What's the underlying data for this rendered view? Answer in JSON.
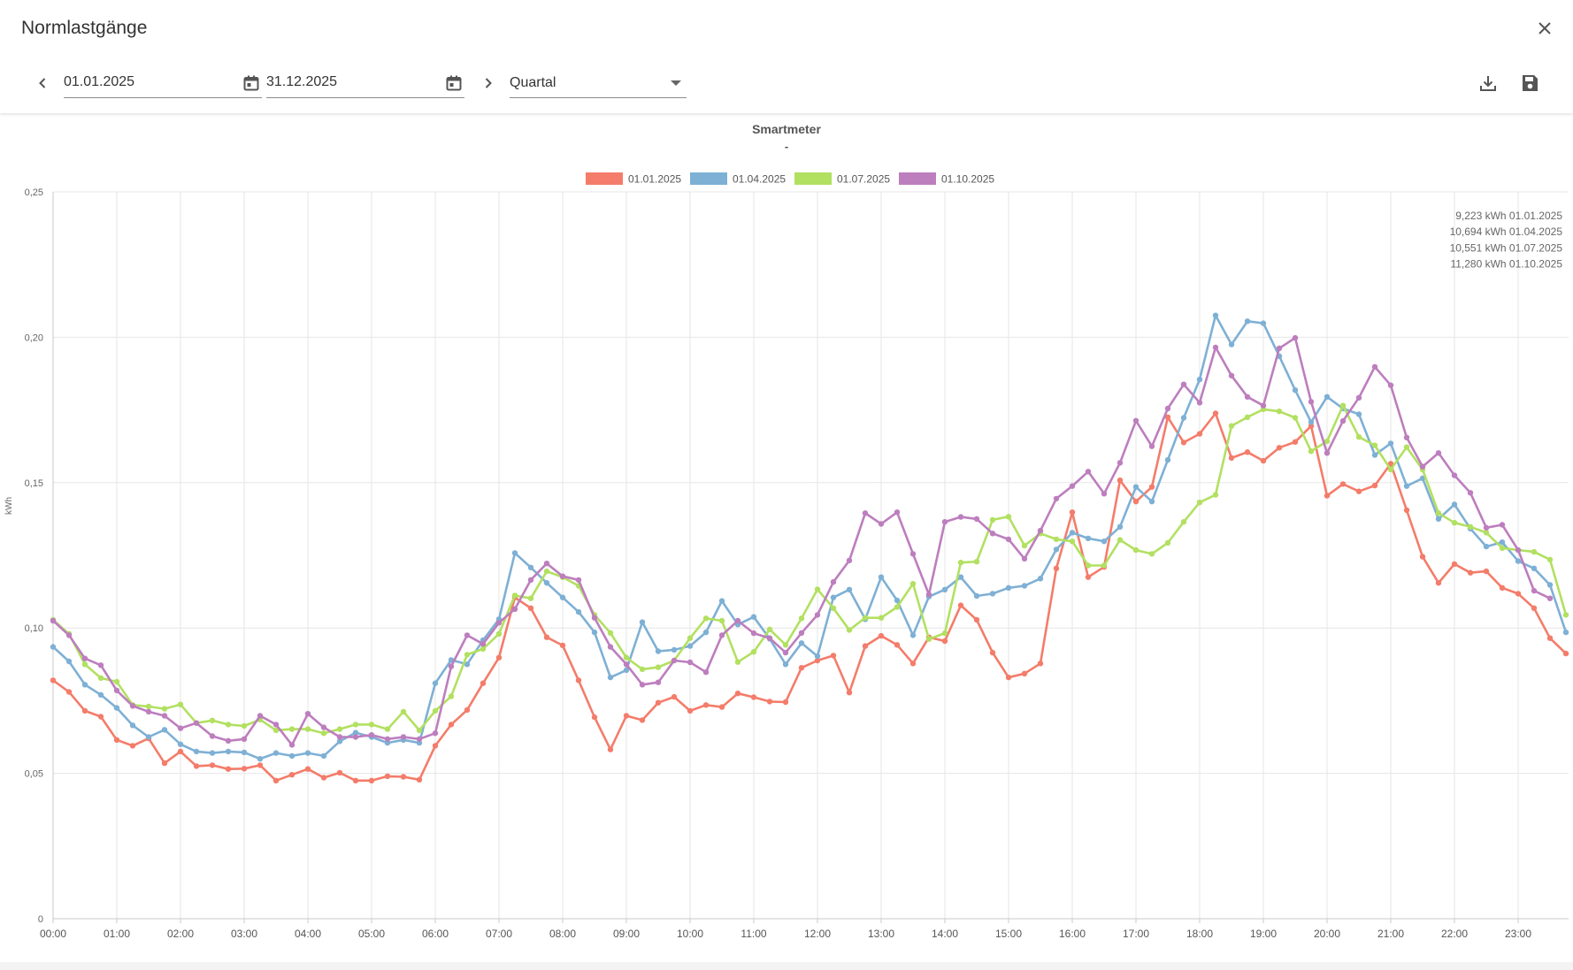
{
  "dialog": {
    "title": "Normlastgänge"
  },
  "toolbar": {
    "date_from": "01.01.2025",
    "date_to": "31.12.2025",
    "interval": "Quartal"
  },
  "icons": {
    "close": "close-icon",
    "prev": "chevron-left-icon",
    "next": "chevron-right-icon",
    "calendar": "calendar-icon",
    "download": "download-icon",
    "save": "save-icon"
  },
  "chart_data": {
    "type": "line",
    "title": "Smartmeter",
    "subtitle": "-",
    "ylabel": "kWh",
    "xlabel": "",
    "ylim": [
      0,
      0.25
    ],
    "y_ticks": [
      "0",
      "0,05",
      "0,10",
      "0,15",
      "0,20",
      "0,25"
    ],
    "x_ticks": [
      "00:00",
      "01:00",
      "02:00",
      "03:00",
      "04:00",
      "05:00",
      "06:00",
      "07:00",
      "08:00",
      "09:00",
      "10:00",
      "11:00",
      "12:00",
      "13:00",
      "14:00",
      "15:00",
      "16:00",
      "17:00",
      "18:00",
      "19:00",
      "20:00",
      "21:00",
      "22:00",
      "23:00"
    ],
    "grid": true,
    "legend_position": "top",
    "totals": [
      "9,223 kWh 01.01.2025",
      "10,694 kWh 01.04.2025",
      "10,551 kWh 01.07.2025",
      "11,280 kWh 01.10.2025"
    ],
    "series": [
      {
        "name": "01.01.2025",
        "color": "#f47c6a",
        "values": [
          0.082,
          0.078,
          0.0715,
          0.0695,
          0.0615,
          0.0595,
          0.062,
          0.0535,
          0.0575,
          0.0525,
          0.0528,
          0.0515,
          0.0516,
          0.0528,
          0.0475,
          0.0495,
          0.0515,
          0.0485,
          0.0502,
          0.0475,
          0.0475,
          0.049,
          0.0488,
          0.0478,
          0.0595,
          0.0668,
          0.0718,
          0.081,
          0.0898,
          0.1105,
          0.1068,
          0.0968,
          0.094,
          0.082,
          0.0693,
          0.0582,
          0.0698,
          0.0683,
          0.0743,
          0.0763,
          0.0715,
          0.0735,
          0.0728,
          0.0775,
          0.0762,
          0.0747,
          0.0745,
          0.0863,
          0.0888,
          0.0905,
          0.0778,
          0.0938,
          0.0973,
          0.0942,
          0.0878,
          0.0968,
          0.0955,
          0.1078,
          0.1028,
          0.0915,
          0.083,
          0.0843,
          0.0878,
          0.1205,
          0.1398,
          0.1175,
          0.121,
          0.1508,
          0.1435,
          0.1485,
          0.1725,
          0.1638,
          0.1668,
          0.1738,
          0.1585,
          0.1605,
          0.1575,
          0.162,
          0.164,
          0.1695,
          0.1455,
          0.1495,
          0.147,
          0.149,
          0.1565,
          0.1405,
          0.1245,
          0.1155,
          0.122,
          0.119,
          0.1195,
          0.1138,
          0.1118,
          0.1068,
          0.0965,
          0.0912
        ]
      },
      {
        "name": "01.04.2025",
        "color": "#7eb0d5",
        "values": [
          0.0935,
          0.0885,
          0.0805,
          0.077,
          0.0725,
          0.0665,
          0.0625,
          0.065,
          0.06,
          0.0575,
          0.057,
          0.0575,
          0.0572,
          0.055,
          0.057,
          0.056,
          0.057,
          0.056,
          0.061,
          0.064,
          0.0625,
          0.0605,
          0.0615,
          0.0605,
          0.081,
          0.089,
          0.0875,
          0.0958,
          0.103,
          0.1258,
          0.1208,
          0.1155,
          0.1105,
          0.1055,
          0.0985,
          0.083,
          0.0855,
          0.102,
          0.092,
          0.0925,
          0.0938,
          0.0985,
          0.1093,
          0.1012,
          0.1038,
          0.0963,
          0.0875,
          0.0948,
          0.0903,
          0.1105,
          0.1132,
          0.103,
          0.1175,
          0.1095,
          0.0975,
          0.1108,
          0.1132,
          0.1175,
          0.111,
          0.1118,
          0.1138,
          0.1145,
          0.117,
          0.127,
          0.1328,
          0.1308,
          0.1298,
          0.1348,
          0.1485,
          0.1435,
          0.1578,
          0.1723,
          0.1855,
          0.2075,
          0.1975,
          0.2055,
          0.2048,
          0.1935,
          0.1818,
          0.1708,
          0.1795,
          0.1755,
          0.1735,
          0.1595,
          0.1635,
          0.1488,
          0.1515,
          0.1375,
          0.1425,
          0.1342,
          0.128,
          0.1295,
          0.123,
          0.1205,
          0.1148,
          0.0985
        ]
      },
      {
        "name": "01.07.2025",
        "color": "#b2e061",
        "values": [
          0.1028,
          0.098,
          0.0875,
          0.0828,
          0.0815,
          0.0735,
          0.073,
          0.0722,
          0.0737,
          0.0673,
          0.0682,
          0.0668,
          0.0663,
          0.0685,
          0.0648,
          0.0652,
          0.0652,
          0.0638,
          0.0652,
          0.0668,
          0.0668,
          0.0652,
          0.0712,
          0.0648,
          0.0715,
          0.0765,
          0.0908,
          0.0928,
          0.098,
          0.1112,
          0.1102,
          0.1195,
          0.1175,
          0.1145,
          0.1045,
          0.0983,
          0.0898,
          0.0858,
          0.0865,
          0.0888,
          0.0965,
          0.1033,
          0.1025,
          0.0883,
          0.0918,
          0.0995,
          0.0942,
          0.1033,
          0.1133,
          0.1068,
          0.0993,
          0.1035,
          0.1035,
          0.1072,
          0.1152,
          0.0962,
          0.0982,
          0.1225,
          0.1228,
          0.1372,
          0.1383,
          0.1283,
          0.1325,
          0.1305,
          0.1298,
          0.1215,
          0.1215,
          0.1303,
          0.1268,
          0.1255,
          0.1293,
          0.1365,
          0.1432,
          0.1458,
          0.1695,
          0.1725,
          0.1752,
          0.1745,
          0.1723,
          0.1608,
          0.1642,
          0.1765,
          0.1657,
          0.1628,
          0.1545,
          0.1622,
          0.1545,
          0.1395,
          0.1362,
          0.1348,
          0.1328,
          0.1275,
          0.1268,
          0.1262,
          0.1235,
          0.1045
        ]
      },
      {
        "name": "01.10.2025",
        "color": "#bd7ebe",
        "values": [
          0.1025,
          0.0975,
          0.0895,
          0.0872,
          0.0785,
          0.0732,
          0.0712,
          0.0698,
          0.0655,
          0.0673,
          0.0628,
          0.0612,
          0.0618,
          0.0698,
          0.0668,
          0.0598,
          0.0705,
          0.0658,
          0.0625,
          0.0625,
          0.0632,
          0.0618,
          0.0625,
          0.0618,
          0.0638,
          0.0868,
          0.0975,
          0.0945,
          0.1018,
          0.1065,
          0.1165,
          0.1222,
          0.1178,
          0.1165,
          0.1035,
          0.0935,
          0.0875,
          0.0805,
          0.0813,
          0.0888,
          0.0882,
          0.0848,
          0.0975,
          0.1025,
          0.0982,
          0.0965,
          0.0915,
          0.0983,
          0.1045,
          0.1158,
          0.1232,
          0.1395,
          0.1358,
          0.1398,
          0.1255,
          0.1115,
          0.1365,
          0.1382,
          0.1375,
          0.1325,
          0.1305,
          0.1238,
          0.1335,
          0.1445,
          0.1488,
          0.1538,
          0.1462,
          0.1568,
          0.1713,
          0.1625,
          0.1755,
          0.1838,
          0.1775,
          0.1965,
          0.1868,
          0.1795,
          0.1765,
          0.1962,
          0.1998,
          0.1778,
          0.1602,
          0.1712,
          0.1792,
          0.1898,
          0.1835,
          0.1655,
          0.1555,
          0.1602,
          0.1525,
          0.1465,
          0.1345,
          0.1355,
          0.1268,
          0.1128,
          0.1102
        ]
      }
    ]
  }
}
